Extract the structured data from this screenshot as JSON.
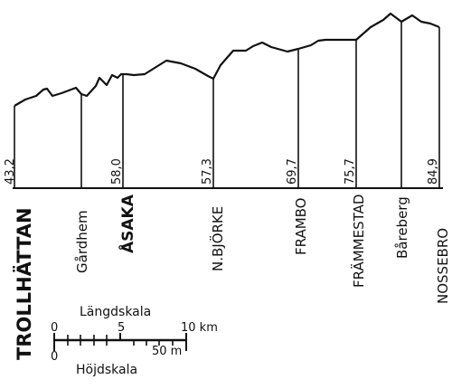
{
  "profile": {
    "stations": [
      {
        "id": "trollhattan",
        "name": "TROLLHÄTTAN",
        "elevation": "43,2"
      },
      {
        "id": "gardhem",
        "name": "Gårdhem",
        "elevation": ""
      },
      {
        "id": "asaka",
        "name": "ÅSAKA",
        "elevation": "58,0"
      },
      {
        "id": "nbjorke",
        "name": "N.BJÖRKE",
        "elevation": "57,3"
      },
      {
        "id": "frambo",
        "name": "FRAMBO",
        "elevation": "69,7"
      },
      {
        "id": "frammestad",
        "name": "FRÄMMESTAD",
        "elevation": "75,7"
      },
      {
        "id": "bareberg",
        "name": "Båreberg",
        "elevation": ""
      },
      {
        "id": "nossebro",
        "name": "NOSSEBRO",
        "elevation": "84,9"
      }
    ]
  },
  "scale": {
    "length_title": "Längdskala",
    "length_ticks": [
      "0",
      "5",
      "10 km"
    ],
    "height_ticks": [
      "0",
      "50 m"
    ],
    "height_title": "Höjdskala"
  },
  "colors": {
    "ink": "#111111",
    "paper": "#ffffff"
  }
}
